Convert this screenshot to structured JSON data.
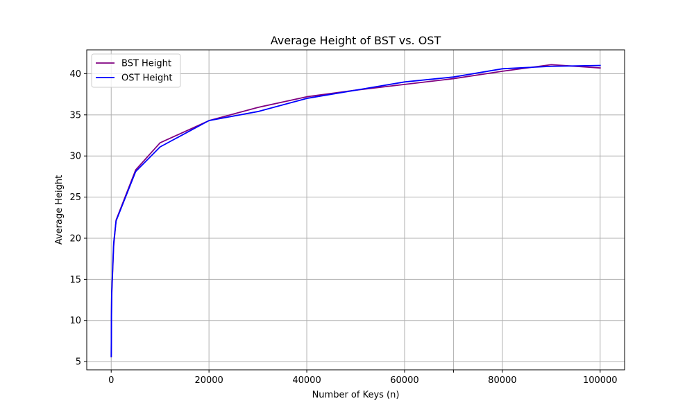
{
  "chart_data": {
    "type": "line",
    "title": "Average Height of BST vs. OST",
    "xlabel": "Number of Keys (n)",
    "ylabel": "Average Height",
    "xlim": [
      -5000,
      105000
    ],
    "ylim": [
      4,
      42.9
    ],
    "grid": true,
    "legend_position": "top-left",
    "x_ticks": [
      0,
      20000,
      40000,
      60000,
      70000,
      80000,
      100000
    ],
    "x_tick_labels": [
      "0",
      "20000",
      "40000",
      "60000",
      "",
      "80000",
      "100000"
    ],
    "y_ticks": [
      5,
      10,
      15,
      20,
      25,
      30,
      35,
      40
    ],
    "y_tick_labels": [
      "5",
      "10",
      "15",
      "20",
      "25",
      "30",
      "35",
      "40"
    ],
    "series": [
      {
        "name": "BST Height",
        "color": "#800080",
        "x": [
          10,
          50,
          100,
          500,
          1000,
          5000,
          10000,
          20000,
          30000,
          40000,
          50000,
          60000,
          70000,
          80000,
          90000,
          100000
        ],
        "y": [
          5.6,
          10.5,
          13.0,
          19.0,
          22.2,
          28.3,
          31.6,
          34.3,
          35.9,
          37.2,
          38.0,
          38.7,
          39.4,
          40.3,
          41.1,
          40.7
        ]
      },
      {
        "name": "OST Height",
        "color": "#0000ff",
        "x": [
          10,
          50,
          100,
          500,
          1000,
          5000,
          10000,
          20000,
          30000,
          40000,
          50000,
          60000,
          70000,
          80000,
          90000,
          100000
        ],
        "y": [
          5.6,
          10.3,
          13.3,
          19.4,
          22.1,
          28.1,
          31.1,
          34.3,
          35.4,
          37.0,
          38.0,
          39.0,
          39.6,
          40.6,
          40.9,
          41.0
        ]
      }
    ]
  }
}
